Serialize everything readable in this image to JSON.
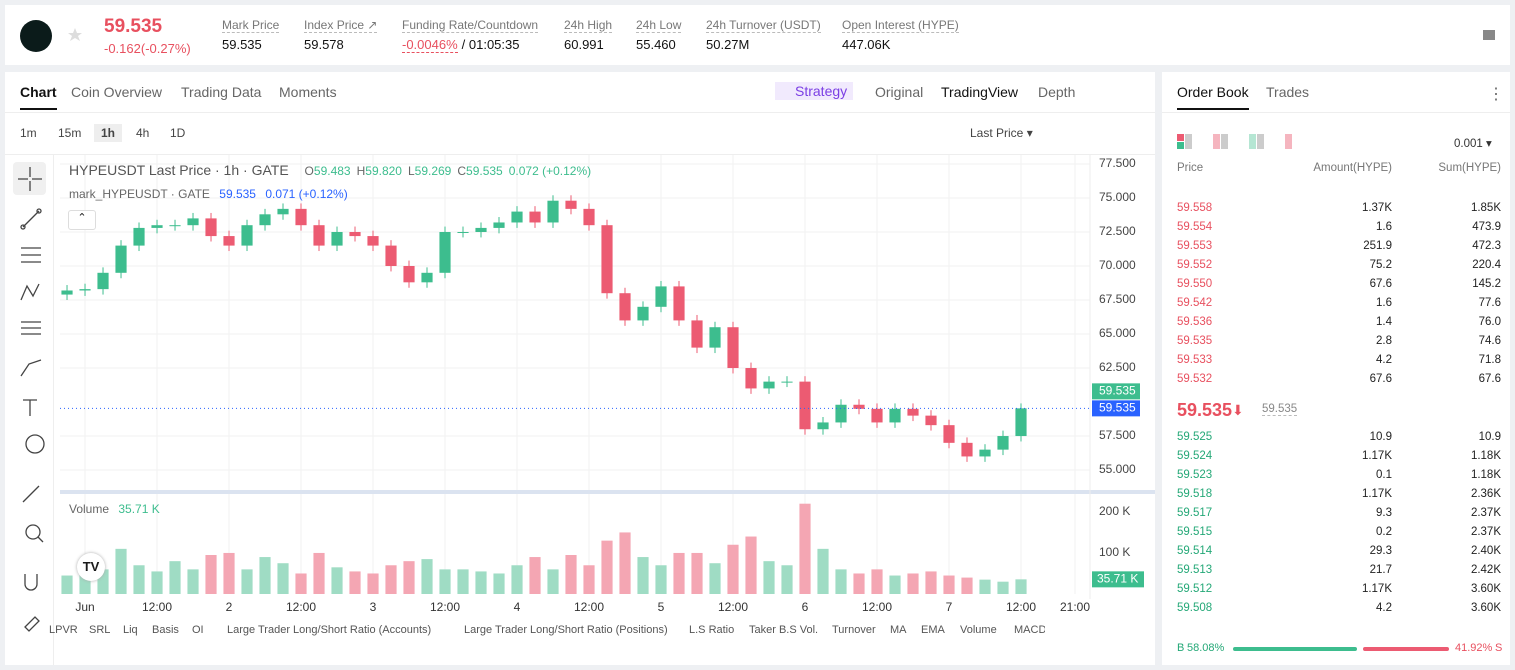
{
  "header": {
    "price": "59.535",
    "change": "-0.162(-0.27%)",
    "stats": [
      {
        "label": "Mark Price",
        "value": "59.535"
      },
      {
        "label": "Index Price ↗",
        "value": "59.578"
      },
      {
        "label": "Funding Rate/Countdown",
        "value": "-0.0046%",
        "extra": "/ 01:05:35"
      },
      {
        "label": "24h High",
        "value": "60.991"
      },
      {
        "label": "24h Low",
        "value": "55.460"
      },
      {
        "label": "24h Turnover (USDT)",
        "value": "50.27M"
      },
      {
        "label": "Open Interest (HYPE)",
        "value": "447.06K"
      }
    ]
  },
  "tabs": [
    "Chart",
    "Coin Overview",
    "Trading Data",
    "Moments"
  ],
  "views": [
    "Strategy",
    "Original",
    "TradingView",
    "Depth"
  ],
  "intervals": [
    "1m",
    "15m",
    "1h",
    "4h",
    "1D"
  ],
  "price_type": "Last Price",
  "legend": {
    "title": "HYPEUSDT Last Price · 1h · GATE",
    "ohlc": [
      {
        "label": "O",
        "value": "59.483"
      },
      {
        "label": "H",
        "value": "59.820"
      },
      {
        "label": "L",
        "value": "59.269"
      },
      {
        "label": "C",
        "value": "59.535"
      }
    ],
    "change": "0.072 (+0.12%)",
    "mark_name": "mark_HYPEUSDT · GATE",
    "mark_value": "59.535",
    "mark_change": "0.071 (+0.12%)"
  },
  "chart_data": [
    {
      "type": "candlestick",
      "up_color": "#3dbd8e",
      "down_color": "#ec5b72",
      "grid": true,
      "x": [
        -3,
        0,
        3,
        6,
        9,
        12,
        15,
        18,
        21,
        24,
        27,
        30,
        33,
        36,
        39,
        42,
        45,
        48,
        51,
        54,
        57,
        60,
        63,
        66,
        69,
        72,
        75,
        78,
        81,
        84,
        87,
        90,
        93,
        96,
        99,
        102,
        105,
        108,
        111,
        114,
        117,
        120,
        123,
        126,
        129,
        132,
        135,
        138,
        141,
        144,
        147,
        150,
        153,
        156
      ],
      "open": [
        67.9,
        68.2,
        68.3,
        69.5,
        71.5,
        72.8,
        73.0,
        73.0,
        73.5,
        72.2,
        71.5,
        73.0,
        73.8,
        74.2,
        73.0,
        71.5,
        72.5,
        72.2,
        71.5,
        70.0,
        68.8,
        69.5,
        72.5,
        72.5,
        72.8,
        73.2,
        74.0,
        73.2,
        74.8,
        74.2,
        73.0,
        68.0,
        66.0,
        67.0,
        68.5,
        66.0,
        64.0,
        65.5,
        62.5,
        61.0,
        61.5,
        61.5,
        58.0,
        58.5,
        59.8,
        59.5,
        58.5,
        59.5,
        59.0,
        58.3,
        57.0,
        56.0,
        56.5,
        57.5
      ],
      "high": [
        68.6,
        68.7,
        69.9,
        71.9,
        73.2,
        73.4,
        73.4,
        73.9,
        73.9,
        72.6,
        73.4,
        74.2,
        74.6,
        74.6,
        73.4,
        72.9,
        72.9,
        72.6,
        71.9,
        70.4,
        69.9,
        72.9,
        72.9,
        73.2,
        73.6,
        74.4,
        74.4,
        75.2,
        75.2,
        74.6,
        73.4,
        68.4,
        67.4,
        68.9,
        68.9,
        66.4,
        65.9,
        65.9,
        62.9,
        61.9,
        61.9,
        61.9,
        58.9,
        60.2,
        60.2,
        59.9,
        59.9,
        59.9,
        59.4,
        58.7,
        57.4,
        56.9,
        57.9,
        59.9
      ],
      "low": [
        67.5,
        67.8,
        67.9,
        69.1,
        71.1,
        72.4,
        72.6,
        72.6,
        71.8,
        71.1,
        71.1,
        72.6,
        73.4,
        72.6,
        71.1,
        71.1,
        71.8,
        71.1,
        69.6,
        68.4,
        68.4,
        69.1,
        72.1,
        72.1,
        72.4,
        72.8,
        72.8,
        72.8,
        73.8,
        72.6,
        67.6,
        65.6,
        65.6,
        66.6,
        65.6,
        63.6,
        63.6,
        62.1,
        60.6,
        60.6,
        61.1,
        57.6,
        57.6,
        58.1,
        59.1,
        58.1,
        58.1,
        58.6,
        57.9,
        56.6,
        55.6,
        55.6,
        56.1,
        57.1
      ],
      "close": [
        68.2,
        68.3,
        69.5,
        71.5,
        72.8,
        73.0,
        73.0,
        73.5,
        72.2,
        71.5,
        73.0,
        73.8,
        74.2,
        73.0,
        71.5,
        72.5,
        72.2,
        71.5,
        70.0,
        68.8,
        69.5,
        72.5,
        72.5,
        72.8,
        73.2,
        74.0,
        73.2,
        74.8,
        74.2,
        73.0,
        68.0,
        66.0,
        67.0,
        68.5,
        66.0,
        64.0,
        65.5,
        62.5,
        61.0,
        61.5,
        61.5,
        58.0,
        58.5,
        59.8,
        59.5,
        58.5,
        59.5,
        59.0,
        58.3,
        57.0,
        56.0,
        56.5,
        57.5,
        59.535
      ],
      "xlim": [
        -4.17,
        167.5
      ],
      "ylim": [
        53.68,
        78.16
      ],
      "xticks": [
        {
          "value": 0,
          "label": "Jun"
        },
        {
          "value": 12,
          "label": "12:00"
        },
        {
          "value": 24,
          "label": "2"
        },
        {
          "value": 36,
          "label": "12:00"
        },
        {
          "value": 48,
          "label": "3"
        },
        {
          "value": 60,
          "label": "12:00"
        },
        {
          "value": 72,
          "label": "4"
        },
        {
          "value": 84,
          "label": "12:00"
        },
        {
          "value": 96,
          "label": "5"
        },
        {
          "value": 108,
          "label": "12:00"
        },
        {
          "value": 120,
          "label": "6"
        },
        {
          "value": 132,
          "label": "12:00"
        },
        {
          "value": 144,
          "label": "7"
        },
        {
          "value": 156,
          "label": "12:00"
        },
        {
          "value": 165,
          "label": "21:00"
        }
      ],
      "yticks": [
        {
          "value": 55,
          "label": "55.000"
        },
        {
          "value": 57.5,
          "label": "57.500"
        },
        {
          "value": 62.5,
          "label": "62.500"
        },
        {
          "value": 65,
          "label": "65.000"
        },
        {
          "value": 67.5,
          "label": "67.500"
        },
        {
          "value": 70,
          "label": "70.000"
        },
        {
          "value": 72.5,
          "label": "72.500"
        },
        {
          "value": 75,
          "label": "75.000"
        },
        {
          "value": 77.5,
          "label": "77.500"
        }
      ],
      "price_tags": [
        {
          "value": 59.535,
          "label": "59.535",
          "color": "#3dbd8e"
        },
        {
          "value": 59.535,
          "label": "59.535",
          "color": "#2962ff"
        }
      ]
    },
    {
      "type": "bar",
      "title": "Volume",
      "value_label": "35.71 K",
      "values": [
        45,
        50,
        60,
        110,
        70,
        55,
        80,
        60,
        95,
        100,
        60,
        90,
        75,
        50,
        100,
        65,
        55,
        50,
        70,
        80,
        85,
        60,
        60,
        55,
        50,
        70,
        90,
        60,
        95,
        70,
        130,
        150,
        90,
        70,
        100,
        100,
        75,
        120,
        140,
        80,
        70,
        220,
        110,
        60,
        50,
        60,
        45,
        50,
        55,
        45,
        40,
        35,
        30,
        35.71
      ],
      "ylim": [
        0,
        229
      ],
      "yticks": [
        {
          "value": 100,
          "label": "100 K"
        },
        {
          "value": 200,
          "label": "200 K"
        }
      ]
    }
  ],
  "indicators": [
    "LPVR",
    "SRL",
    "Liq",
    "Basis",
    "OI",
    "Large Trader Long/Short Ratio (Accounts)",
    "Large Trader Long/Short Ratio (Positions)",
    "L.S Ratio",
    "Taker B.S Vol.",
    "Turnover",
    "MA",
    "EMA",
    "Volume",
    "MACD"
  ],
  "order_book": {
    "tabs": [
      "Order Book",
      "Trades"
    ],
    "precision": "0.001",
    "columns": [
      "Price",
      "Amount(HYPE)",
      "Sum(HYPE)"
    ],
    "asks": [
      [
        "59.558",
        "1.37K",
        "1.85K"
      ],
      [
        "59.554",
        "1.6",
        "473.9"
      ],
      [
        "59.553",
        "251.9",
        "472.3"
      ],
      [
        "59.552",
        "75.2",
        "220.4"
      ],
      [
        "59.550",
        "67.6",
        "145.2"
      ],
      [
        "59.542",
        "1.6",
        "77.6"
      ],
      [
        "59.536",
        "1.4",
        "76.0"
      ],
      [
        "59.535",
        "2.8",
        "74.6"
      ],
      [
        "59.533",
        "4.2",
        "71.8"
      ],
      [
        "59.532",
        "67.6",
        "67.6"
      ]
    ],
    "last_price": "59.535",
    "mark_price": "59.535",
    "bids": [
      [
        "59.525",
        "10.9",
        "10.9"
      ],
      [
        "59.524",
        "1.17K",
        "1.18K"
      ],
      [
        "59.523",
        "0.1",
        "1.18K"
      ],
      [
        "59.518",
        "1.17K",
        "2.36K"
      ],
      [
        "59.517",
        "9.3",
        "2.37K"
      ],
      [
        "59.515",
        "0.2",
        "2.37K"
      ],
      [
        "59.514",
        "29.3",
        "2.40K"
      ],
      [
        "59.513",
        "21.7",
        "2.42K"
      ],
      [
        "59.512",
        "1.17K",
        "3.60K"
      ],
      [
        "59.508",
        "4.2",
        "3.60K"
      ]
    ],
    "ratio": {
      "buy_letter": "B",
      "buy": "58.08%",
      "sell": "41.92%",
      "sell_letter": "S"
    }
  }
}
